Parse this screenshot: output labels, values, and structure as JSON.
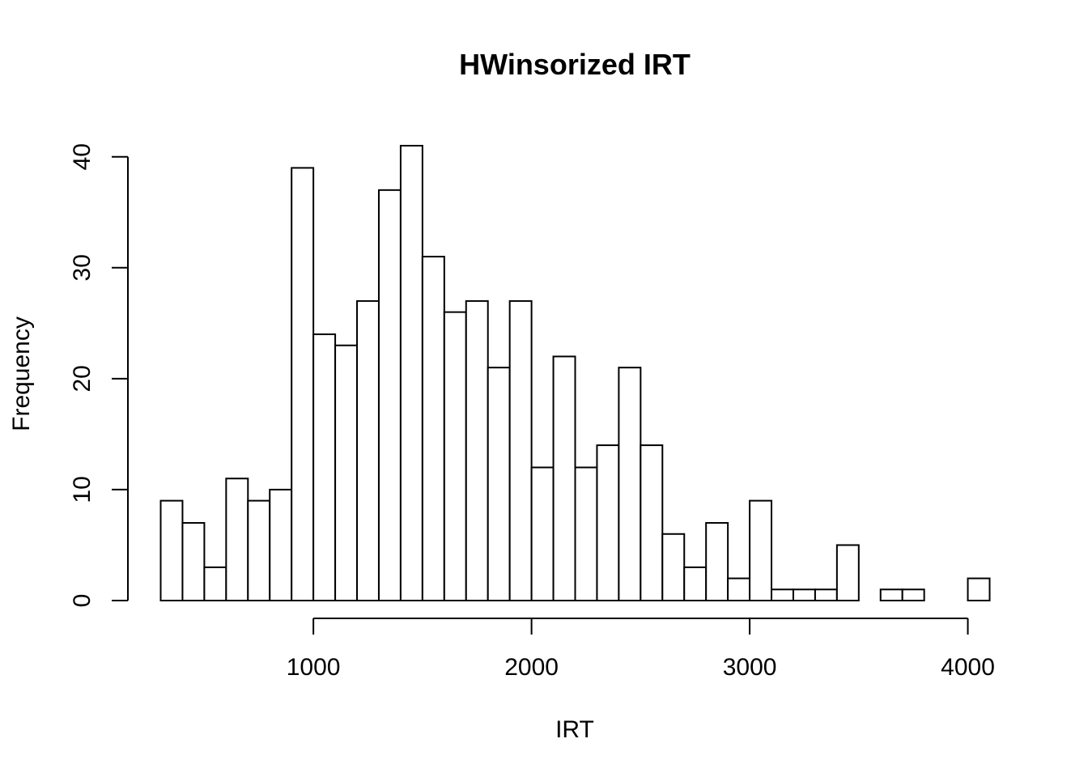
{
  "chart_data": {
    "type": "bar",
    "title": "HWinsorized IRT",
    "xlabel": "IRT",
    "ylabel": "Frequency",
    "bin_edges": [
      300,
      400,
      500,
      600,
      700,
      800,
      900,
      1000,
      1100,
      1200,
      1300,
      1400,
      1500,
      1600,
      1700,
      1800,
      1900,
      2000,
      2100,
      2200,
      2300,
      2400,
      2500,
      2600,
      2700,
      2800,
      2900,
      3000,
      3100,
      3200,
      3300,
      3400,
      3500,
      3600,
      3700,
      3800,
      3900,
      4000,
      4100
    ],
    "values": [
      9,
      7,
      3,
      11,
      9,
      10,
      39,
      24,
      23,
      27,
      37,
      41,
      31,
      26,
      27,
      21,
      27,
      12,
      22,
      12,
      14,
      21,
      14,
      6,
      3,
      7,
      2,
      9,
      1,
      1,
      1,
      5,
      0,
      1,
      1,
      0,
      0,
      2
    ],
    "xlim": [
      300,
      4100
    ],
    "ylim": [
      0,
      41
    ],
    "x_ticks": [
      1000,
      2000,
      3000,
      4000
    ],
    "x_tick_labels": [
      "1000",
      "2000",
      "3000",
      "4000"
    ],
    "y_ticks": [
      0,
      10,
      20,
      30,
      40
    ],
    "y_tick_labels": [
      "0",
      "10",
      "20",
      "30",
      "40"
    ],
    "grid": false,
    "colors": {
      "bar_fill": "#ffffff",
      "bar_stroke": "#000000"
    }
  }
}
